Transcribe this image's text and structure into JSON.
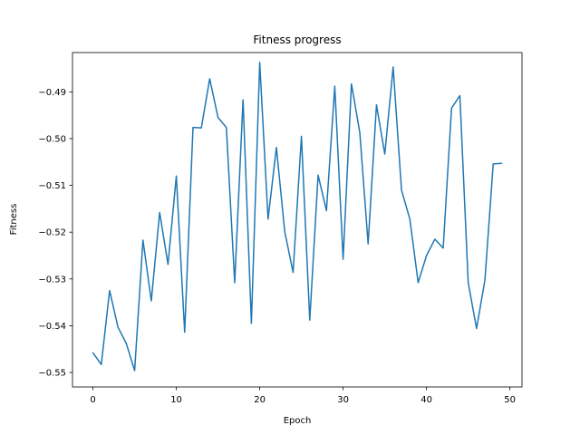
{
  "chart_data": {
    "type": "line",
    "title": "Fitness progress",
    "xlabel": "Epoch",
    "ylabel": "Fitness",
    "xlim": [
      -2.45,
      51.45
    ],
    "ylim": [
      -0.5531,
      -0.4816
    ],
    "xticks": [
      0,
      10,
      20,
      30,
      40,
      50
    ],
    "yticks": [
      -0.55,
      -0.54,
      -0.53,
      -0.52,
      -0.51,
      -0.5,
      -0.49
    ],
    "ytick_labels": [
      "−0.55",
      "−0.54",
      "−0.53",
      "−0.52",
      "−0.51",
      "−0.50",
      "−0.49"
    ],
    "grid": false,
    "legend": "none",
    "series": [
      {
        "color": "#1f77b4",
        "x": [
          0,
          1,
          2,
          3,
          4,
          5,
          6,
          7,
          8,
          9,
          10,
          11,
          12,
          13,
          14,
          15,
          16,
          17,
          18,
          19,
          20,
          21,
          22,
          23,
          24,
          25,
          26,
          27,
          28,
          29,
          30,
          31,
          32,
          33,
          34,
          35,
          36,
          37,
          38,
          39,
          40,
          41,
          42,
          43,
          44,
          45,
          46,
          47,
          48,
          49
        ],
        "y": [
          -0.5458,
          -0.5483,
          -0.5325,
          -0.5403,
          -0.5438,
          -0.5496,
          -0.5217,
          -0.5347,
          -0.5158,
          -0.5269,
          -0.508,
          -0.5414,
          -0.4976,
          -0.4977,
          -0.4872,
          -0.4955,
          -0.4976,
          -0.5308,
          -0.4917,
          -0.5395,
          -0.4837,
          -0.5172,
          -0.5019,
          -0.5199,
          -0.5286,
          -0.4995,
          -0.5388,
          -0.5078,
          -0.5154,
          -0.4888,
          -0.5258,
          -0.4883,
          -0.4987,
          -0.5225,
          -0.4928,
          -0.5033,
          -0.4847,
          -0.511,
          -0.5172,
          -0.5308,
          -0.525,
          -0.5215,
          -0.5234,
          -0.4935,
          -0.4908,
          -0.5308,
          -0.5406,
          -0.5303,
          -0.5054,
          -0.5053
        ]
      }
    ]
  }
}
